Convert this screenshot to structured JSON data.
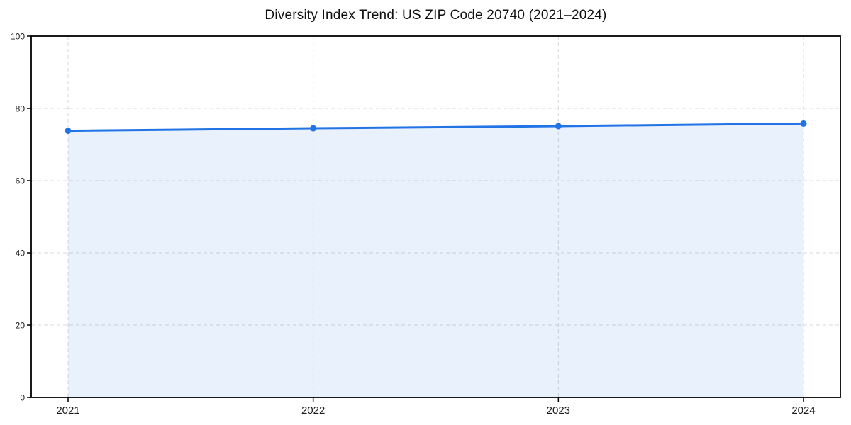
{
  "chart_data": {
    "type": "area",
    "title": "Diversity Index Trend: US ZIP Code 20740 (2021–2024)",
    "x": [
      "2021",
      "2022",
      "2023",
      "2024"
    ],
    "values": [
      73.8,
      74.5,
      75.1,
      75.8
    ],
    "xlabel": "",
    "ylabel": "",
    "ylim": [
      0,
      100
    ],
    "yticks": [
      0,
      20,
      40,
      60,
      80,
      100
    ],
    "grid": true,
    "grid_style": "dashed",
    "legend": "none",
    "marker": "circle",
    "styles": {
      "line_color": "#2273e6",
      "fill_color": "rgba(34, 115, 230, 0.10)",
      "grid_color": "#d9d9d9",
      "spine_color": "#000000",
      "tick_color": "#000000",
      "tick_label_color": "#1a1a1a",
      "title_color": "#111111",
      "background_color": "#ffffff"
    }
  }
}
